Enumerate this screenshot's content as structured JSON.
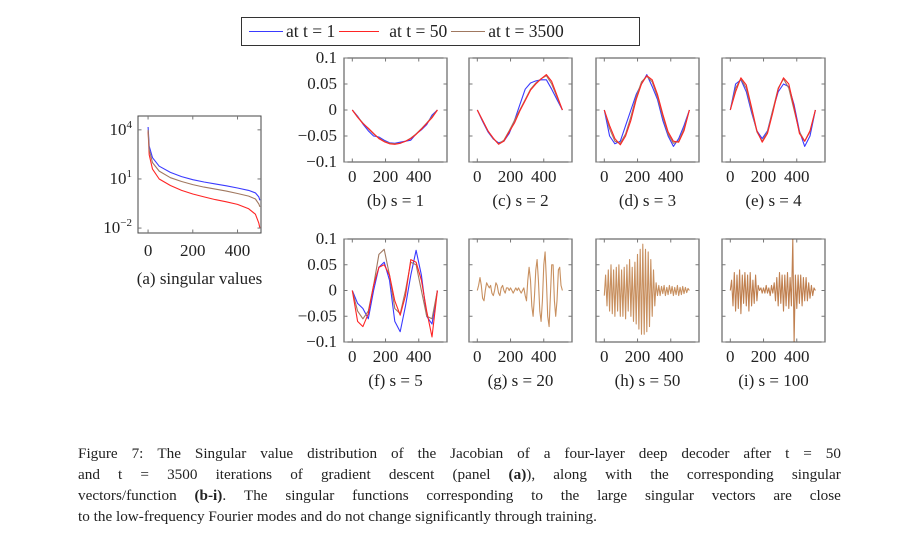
{
  "legend": {
    "entries": [
      {
        "label": "at t = 1",
        "color": "#3a3aff"
      },
      {
        "label": "at t = 50",
        "color": "#ff2424"
      },
      {
        "label": "at t = 3500",
        "color": "#a07860"
      }
    ]
  },
  "chart_data": [
    {
      "type": "line",
      "caption": "(a) singular values",
      "yscale": "log",
      "xlim": [
        -45,
        505
      ],
      "ylim": [
        0.005,
        70000
      ],
      "xticks": [
        0,
        200,
        400
      ],
      "xtick_labels": [
        "0",
        "200",
        "400"
      ],
      "yticks": [
        0.01,
        10,
        10000
      ],
      "ytick_labels": [
        {
          "base": "10",
          "exp": "−2"
        },
        {
          "base": "10",
          "exp": "1"
        },
        {
          "base": "10",
          "exp": "4"
        }
      ],
      "x": [
        0,
        5,
        20,
        50,
        100,
        150,
        200,
        250,
        300,
        350,
        400,
        450,
        480,
        495,
        500
      ],
      "series": [
        {
          "name": "at t = 1",
          "color": "#3a3aff",
          "values": [
            15000,
            1000,
            200,
            60,
            25,
            14,
            9,
            6.5,
            5,
            3.8,
            2.8,
            2,
            1.4,
            0.8,
            0.5
          ]
        },
        {
          "name": "at t = 50",
          "color": "#ff2424",
          "values": [
            8000,
            300,
            40,
            10,
            4,
            2,
            1.2,
            0.8,
            0.55,
            0.4,
            0.28,
            0.15,
            0.07,
            0.02,
            0.01
          ]
        },
        {
          "name": "at t = 3500",
          "color": "#a07860",
          "values": [
            10000,
            600,
            100,
            30,
            12,
            7,
            4.5,
            3.2,
            2.4,
            1.8,
            1.3,
            0.9,
            0.6,
            0.3,
            0.2
          ]
        }
      ]
    },
    {
      "type": "line",
      "caption": "(b) s = 1",
      "xlim": [
        -50,
        570
      ],
      "ylim": [
        -0.1,
        0.1
      ],
      "xticks": [
        0,
        200,
        400
      ],
      "xtick_labels": [
        "0",
        "200",
        "400"
      ],
      "yticks": [
        0.1,
        0.05,
        0,
        -0.05,
        -0.1
      ],
      "ytick_labels": [
        "0.1",
        "0.05",
        "0",
        "−0.05",
        "−0.1"
      ],
      "x_start": 0,
      "x_step": 32,
      "series": [
        {
          "name": "at t = 1",
          "color": "#3a3aff",
          "values": [
            0,
            -0.012,
            -0.027,
            -0.04,
            -0.05,
            -0.052,
            -0.058,
            -0.063,
            -0.064,
            -0.062,
            -0.06,
            -0.058,
            -0.046,
            -0.038,
            -0.028,
            -0.01,
            0
          ]
        },
        {
          "name": "at t = 3500",
          "color": "#a07860",
          "values": [
            0,
            -0.013,
            -0.025,
            -0.036,
            -0.046,
            -0.054,
            -0.06,
            -0.064,
            -0.065,
            -0.064,
            -0.06,
            -0.054,
            -0.046,
            -0.036,
            -0.025,
            -0.013,
            0
          ]
        },
        {
          "name": "at t = 50",
          "color": "#ff2424",
          "values": [
            0,
            -0.014,
            -0.026,
            -0.035,
            -0.045,
            -0.055,
            -0.061,
            -0.065,
            -0.066,
            -0.064,
            -0.06,
            -0.055,
            -0.047,
            -0.037,
            -0.026,
            -0.015,
            0
          ]
        }
      ]
    },
    {
      "type": "line",
      "caption": "(c) s = 2",
      "xlim": [
        -50,
        570
      ],
      "ylim": [
        -0.1,
        0.1
      ],
      "xticks": [
        0,
        200,
        400
      ],
      "xtick_labels": [
        "0",
        "200",
        "400"
      ],
      "yticks": [
        0.1,
        0.05,
        0,
        -0.05,
        -0.1
      ],
      "x_start": 0,
      "x_step": 32,
      "series": [
        {
          "name": "at t = 1",
          "color": "#3a3aff",
          "values": [
            0,
            -0.022,
            -0.042,
            -0.056,
            -0.063,
            -0.06,
            -0.045,
            -0.02,
            0.01,
            0.04,
            0.052,
            0.056,
            0.058,
            0.058,
            0.04,
            0.02,
            0
          ]
        },
        {
          "name": "at t = 3500",
          "color": "#a07860",
          "values": [
            0,
            -0.02,
            -0.04,
            -0.055,
            -0.065,
            -0.058,
            -0.04,
            -0.02,
            0,
            0.02,
            0.04,
            0.052,
            0.06,
            0.066,
            0.05,
            0.025,
            0
          ]
        },
        {
          "name": "at t = 50",
          "color": "#ff2424",
          "values": [
            0,
            -0.02,
            -0.04,
            -0.054,
            -0.066,
            -0.06,
            -0.042,
            -0.025,
            -0.002,
            0.018,
            0.038,
            0.05,
            0.06,
            0.068,
            0.055,
            0.028,
            0
          ]
        }
      ]
    },
    {
      "type": "line",
      "caption": "(d) s = 3",
      "xlim": [
        -50,
        570
      ],
      "ylim": [
        -0.1,
        0.1
      ],
      "xticks": [
        0,
        200,
        400
      ],
      "xtick_labels": [
        "0",
        "200",
        "400"
      ],
      "yticks": [
        0.1,
        0.05,
        0,
        -0.05,
        -0.1
      ],
      "x_start": 0,
      "x_step": 32,
      "series": [
        {
          "name": "at t = 1",
          "color": "#3a3aff",
          "values": [
            0,
            -0.05,
            -0.065,
            -0.06,
            -0.03,
            0,
            0.03,
            0.05,
            0.068,
            0.045,
            0.02,
            -0.02,
            -0.05,
            -0.07,
            -0.055,
            -0.03,
            0
          ]
        },
        {
          "name": "at t = 3500",
          "color": "#a07860",
          "values": [
            0,
            -0.036,
            -0.06,
            -0.064,
            -0.046,
            -0.013,
            0.025,
            0.054,
            0.065,
            0.054,
            0.025,
            -0.013,
            -0.046,
            -0.064,
            -0.06,
            -0.036,
            0
          ]
        },
        {
          "name": "at t = 50",
          "color": "#ff2424",
          "values": [
            0,
            -0.03,
            -0.055,
            -0.067,
            -0.05,
            -0.02,
            0.02,
            0.05,
            0.066,
            0.058,
            0.03,
            -0.008,
            -0.042,
            -0.06,
            -0.062,
            -0.04,
            0
          ]
        }
      ]
    },
    {
      "type": "line",
      "caption": "(e) s = 4",
      "xlim": [
        -50,
        570
      ],
      "ylim": [
        -0.1,
        0.1
      ],
      "xticks": [
        0,
        200,
        400
      ],
      "xtick_labels": [
        "0",
        "200",
        "400"
      ],
      "yticks": [
        0.1,
        0.05,
        0,
        -0.05,
        -0.1
      ],
      "x_start": 0,
      "x_step": 32,
      "series": [
        {
          "name": "at t = 1",
          "color": "#3a3aff",
          "values": [
            0,
            0.05,
            0.058,
            0.035,
            -0.005,
            -0.04,
            -0.055,
            -0.04,
            0,
            0.035,
            0.05,
            0.045,
            0.01,
            -0.04,
            -0.07,
            -0.05,
            0
          ]
        },
        {
          "name": "at t = 3500",
          "color": "#a07860",
          "values": [
            0,
            0.042,
            0.06,
            0.042,
            0,
            -0.042,
            -0.06,
            -0.042,
            0,
            0.042,
            0.06,
            0.042,
            0,
            -0.042,
            -0.06,
            -0.042,
            0
          ]
        },
        {
          "name": "at t = 50",
          "color": "#ff2424",
          "values": [
            0,
            0.035,
            0.062,
            0.048,
            0.005,
            -0.04,
            -0.062,
            -0.045,
            -0.005,
            0.04,
            0.062,
            0.05,
            0.005,
            -0.045,
            -0.06,
            -0.04,
            0
          ]
        }
      ]
    },
    {
      "type": "line",
      "caption": "(f) s = 5",
      "xlim": [
        -50,
        570
      ],
      "ylim": [
        -0.1,
        0.1
      ],
      "xticks": [
        0,
        200,
        400
      ],
      "xtick_labels": [
        "0",
        "200",
        "400"
      ],
      "yticks": [
        0.1,
        0.05,
        0,
        -0.05,
        -0.1
      ],
      "ytick_labels": [
        "0.1",
        "0.05",
        "0",
        "−0.05",
        "−0.1"
      ],
      "x_start": 0,
      "x_step": 32,
      "series": [
        {
          "name": "at t = 1",
          "color": "#3a3aff",
          "values": [
            0,
            -0.025,
            -0.035,
            -0.055,
            0,
            0.045,
            0.055,
            0.02,
            -0.06,
            -0.08,
            -0.03,
            0.03,
            0.078,
            0.03,
            -0.05,
            -0.065,
            0
          ]
        },
        {
          "name": "at t = 3500",
          "color": "#a07860",
          "values": [
            0,
            -0.04,
            -0.055,
            -0.04,
            0.01,
            0.07,
            0.08,
            0.03,
            -0.035,
            -0.045,
            0,
            0.055,
            0.05,
            0,
            -0.05,
            -0.055,
            0
          ]
        },
        {
          "name": "at t = 50",
          "color": "#ff2424",
          "values": [
            0,
            -0.06,
            -0.07,
            -0.045,
            0.01,
            0.045,
            0.05,
            0.03,
            -0.02,
            -0.048,
            -0.01,
            0.06,
            0.055,
            0.02,
            -0.04,
            -0.09,
            0
          ]
        }
      ]
    },
    {
      "type": "line",
      "caption": "(g) s = 20",
      "xlim": [
        -50,
        570
      ],
      "ylim": [
        -0.1,
        0.1
      ],
      "xticks": [
        0,
        200,
        400
      ],
      "xtick_labels": [
        "0",
        "200",
        "400"
      ],
      "yticks": [
        0.1,
        0.05,
        0,
        -0.05,
        -0.1
      ],
      "x_start": 0,
      "x_step": 8,
      "series": [
        {
          "name": "at t = 3500",
          "color": "#c89060",
          "values": [
            0,
            0.01,
            0.025,
            0.01,
            -0.015,
            -0.02,
            0,
            0.015,
            0.01,
            0.005,
            0.01,
            -0.005,
            -0.01,
            0,
            0.015,
            0.01,
            -0.005,
            -0.01,
            0.005,
            0.01,
            0,
            -0.005,
            0.005,
            0.005,
            0,
            0.005,
            0,
            -0.005,
            0,
            0.005,
            0,
            0.005,
            0,
            -0.005,
            0,
            0.005,
            -0.01,
            -0.02,
            0.02,
            0.045,
            0.02,
            -0.03,
            -0.05,
            -0.01,
            0.04,
            0.06,
            0.02,
            -0.04,
            -0.06,
            -0.02,
            0.05,
            0.075,
            0.02,
            -0.05,
            -0.07,
            -0.01,
            0.05,
            0.05,
            -0.02,
            -0.05,
            -0.02,
            0.04,
            0.045,
            0.01,
            0
          ]
        }
      ]
    },
    {
      "type": "line",
      "caption": "(h) s = 50",
      "xlim": [
        -50,
        570
      ],
      "ylim": [
        -0.1,
        0.1
      ],
      "xticks": [
        0,
        200,
        400
      ],
      "xtick_labels": [
        "0",
        "200",
        "400"
      ],
      "yticks": [
        0.1,
        0.05,
        0,
        -0.05,
        -0.1
      ],
      "x_start": 0,
      "x_step": 8,
      "series": [
        {
          "name": "at t = 3500",
          "color": "#c89060",
          "values": [
            -0.01,
            0.03,
            -0.03,
            0.04,
            -0.04,
            0.05,
            -0.045,
            0.04,
            -0.05,
            0.045,
            -0.04,
            0.05,
            -0.05,
            0.04,
            -0.05,
            0.045,
            -0.055,
            0.05,
            -0.04,
            0.06,
            -0.05,
            0.045,
            -0.06,
            0.055,
            -0.065,
            0.07,
            -0.075,
            0.08,
            -0.085,
            0.09,
            -0.085,
            0.08,
            -0.08,
            0.075,
            -0.07,
            0.06,
            -0.05,
            0.04,
            -0.03,
            0.015,
            -0.01,
            0.01,
            -0.01,
            0.008,
            -0.006,
            0.01,
            -0.01,
            0.006,
            -0.008,
            0.01,
            -0.006,
            0.008,
            -0.01,
            0.006,
            -0.008,
            0.01,
            -0.01,
            0.006,
            -0.008,
            0.008,
            -0.006,
            0.006,
            -0.004,
            0.004,
            0
          ]
        }
      ]
    },
    {
      "type": "line",
      "caption": "(i) s = 100",
      "xlim": [
        -50,
        570
      ],
      "ylim": [
        -0.1,
        0.1
      ],
      "xticks": [
        0,
        200,
        400
      ],
      "xtick_labels": [
        "0",
        "200",
        "400"
      ],
      "yticks": [
        0.1,
        0.05,
        0,
        -0.05,
        -0.1
      ],
      "x_start": 0,
      "x_step": 8,
      "series": [
        {
          "name": "at t = 3500",
          "color": "#c08050",
          "values": [
            0,
            0.02,
            -0.03,
            0.035,
            -0.04,
            0.03,
            -0.035,
            0.04,
            -0.045,
            0.03,
            -0.025,
            0.035,
            -0.03,
            0.03,
            -0.04,
            0.035,
            -0.03,
            0.02,
            -0.025,
            0.03,
            -0.02,
            0.01,
            0,
            0.005,
            -0.005,
            0.005,
            -0.005,
            0.01,
            -0.005,
            0.005,
            -0.01,
            0.01,
            -0.005,
            0.015,
            -0.02,
            0.025,
            -0.03,
            0.035,
            -0.025,
            0.03,
            -0.04,
            0.03,
            -0.03,
            0.035,
            -0.035,
            0.025,
            -0.03,
            0.1,
            -0.1,
            0.03,
            -0.035,
            0.03,
            -0.025,
            0.03,
            -0.03,
            0.025,
            -0.02,
            0.025,
            -0.02,
            0.015,
            -0.015,
            0.01,
            -0.01,
            0.005,
            0
          ]
        }
      ]
    }
  ],
  "caption": {
    "lines": [
      [
        {
          "t": "Figure 7:  The Singular value distribution of the Jacobian of a four-layer deep decoder after t = 50"
        }
      ],
      [
        {
          "t": "and t = 3500 iterations of gradient descent (panel "
        },
        {
          "t": "(a)",
          "bold": true
        },
        {
          "t": "), along with the corresponding singular"
        }
      ],
      [
        {
          "t": "vectors/function "
        },
        {
          "t": "(b-i)",
          "bold": true
        },
        {
          "t": ". The singular functions corresponding to the large singular vectors are close"
        }
      ],
      [
        {
          "t": "to the low-frequency Fourier modes and do not change significantly through training."
        }
      ]
    ]
  }
}
